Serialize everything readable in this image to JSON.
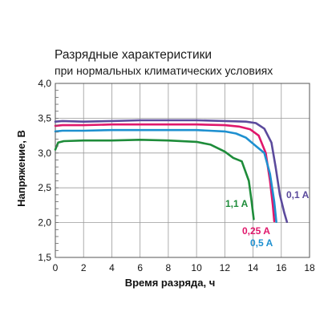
{
  "chart_data": {
    "type": "line",
    "title": "Разрядные характеристики",
    "subtitle": "при нормальных климатических условиях",
    "xlabel": "Время разряда, ч",
    "ylabel": "Напряжение, В",
    "xlim": [
      0,
      18
    ],
    "ylim": [
      1.5,
      4.0
    ],
    "xticks": [
      "0",
      "2",
      "4",
      "6",
      "8",
      "10",
      "12",
      "14",
      "16",
      "18"
    ],
    "yticks": [
      "1,5",
      "2,0",
      "2,5",
      "3,0",
      "3,5",
      "4,0"
    ],
    "grid": true,
    "series": [
      {
        "name": "0,1 A",
        "color": "#5b4a9c",
        "x": [
          0,
          0.5,
          2,
          4,
          6,
          8,
          10,
          12,
          13.5,
          14.2,
          14.8,
          15.3,
          15.6,
          15.9,
          16.2,
          16.4
        ],
        "y": [
          3.45,
          3.46,
          3.45,
          3.46,
          3.47,
          3.47,
          3.47,
          3.46,
          3.45,
          3.43,
          3.35,
          3.15,
          2.8,
          2.4,
          2.15,
          2.01
        ]
      },
      {
        "name": "0,25 A",
        "color": "#e0176b",
        "x": [
          0,
          0.5,
          2,
          4,
          6,
          8,
          10,
          12,
          13,
          13.8,
          14.4,
          14.9,
          15.2,
          15.4,
          15.5
        ],
        "y": [
          3.39,
          3.4,
          3.4,
          3.41,
          3.41,
          3.41,
          3.41,
          3.4,
          3.38,
          3.34,
          3.25,
          3.0,
          2.6,
          2.25,
          2.02
        ]
      },
      {
        "name": "0,5 A",
        "color": "#1e90d0",
        "x": [
          0,
          0.5,
          2,
          4,
          6,
          8,
          10,
          12,
          12.8,
          13.5,
          14.2,
          14.8,
          15.2,
          15.5,
          15.65
        ],
        "y": [
          3.31,
          3.32,
          3.32,
          3.33,
          3.33,
          3.33,
          3.33,
          3.31,
          3.28,
          3.22,
          3.1,
          3.0,
          2.7,
          2.3,
          2.01
        ]
      },
      {
        "name": "1,1 A",
        "color": "#1e8c3a",
        "x": [
          0,
          0.2,
          0.6,
          2,
          4,
          6,
          8,
          10,
          11,
          12,
          12.6,
          13.2,
          13.7,
          13.9,
          14.05
        ],
        "y": [
          3.05,
          3.15,
          3.17,
          3.18,
          3.18,
          3.19,
          3.18,
          3.16,
          3.12,
          3.02,
          2.93,
          2.88,
          2.6,
          2.3,
          2.05
        ]
      }
    ]
  }
}
